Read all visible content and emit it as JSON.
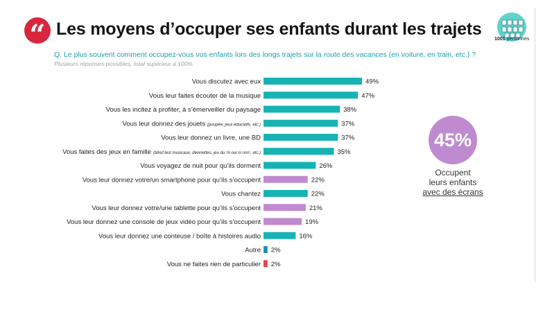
{
  "header": {
    "quote_glyph": "“",
    "title": "Les moyens d’occuper ses enfants durant les trajets",
    "question": "Q. Le plus souvent comment occupez-vous vos enfants lors des longs trajets sur la route des vacances (en voiture, en train, etc.) ?",
    "subquestion": "Plusieurs réponses possibles, total supérieur à 100%"
  },
  "logo": {
    "number": "1001",
    "word": "personnes",
    "icon": "people-group-icon"
  },
  "colors": {
    "teal": "#17b3b3",
    "purple": "#c08ad0",
    "red": "#e8424f",
    "blue": "#1e8fb8"
  },
  "callout": {
    "value": "45%",
    "line1": "Occupent",
    "line2": "leurs enfants",
    "line3": "avec des écrans"
  },
  "chart_data": {
    "type": "bar",
    "orientation": "horizontal",
    "categories": [
      {
        "label": "Vous discutez avec eux",
        "note": "",
        "value": 49,
        "color": "teal"
      },
      {
        "label": "Vous leur faites écouter de la musique",
        "note": "",
        "value": 47,
        "color": "teal"
      },
      {
        "label": "Vous les incitez à profiter, à s’émerveiller du paysage",
        "note": "",
        "value": 38,
        "color": "teal"
      },
      {
        "label": "Vous leur donnez des jouets",
        "note": "(poupée, jeux éducatifs, etc.)",
        "value": 37,
        "color": "teal"
      },
      {
        "label": "Vous leur donnez un livre, une BD",
        "note": "",
        "value": 37,
        "color": "teal"
      },
      {
        "label": "Vous faites des jeux en famille",
        "note": "(blind test musicaux, devinettes, jeu du ‘ni oui ni non’, etc.)",
        "value": 35,
        "color": "teal"
      },
      {
        "label": "Vous voyagez de nuit pour qu’ils dorment",
        "note": "",
        "value": 26,
        "color": "teal"
      },
      {
        "label": "Vous leur donnez votre/un smartphone pour qu’ils s’occupent",
        "note": "",
        "value": 22,
        "color": "purple"
      },
      {
        "label": "Vous chantez",
        "note": "",
        "value": 22,
        "color": "teal"
      },
      {
        "label": "Vous leur donnez votre/une tablette pour qu’ils s’occupent",
        "note": "",
        "value": 21,
        "color": "purple"
      },
      {
        "label": "Vous leur donnez une console de jeux vidéo pour qu’ils s’occupent",
        "note": "",
        "value": 19,
        "color": "purple"
      },
      {
        "label": "Vous leur donnez une conteuse / boîte à histoires audio",
        "note": "",
        "value": 16,
        "color": "teal"
      },
      {
        "label": "Autre",
        "note": "",
        "value": 2,
        "color": "blue"
      },
      {
        "label": "Vous ne faites rien de particulier",
        "note": "",
        "value": 2,
        "color": "red"
      }
    ],
    "value_suffix": "%",
    "xlim": [
      0,
      49
    ],
    "grid": false,
    "legend": "none"
  }
}
